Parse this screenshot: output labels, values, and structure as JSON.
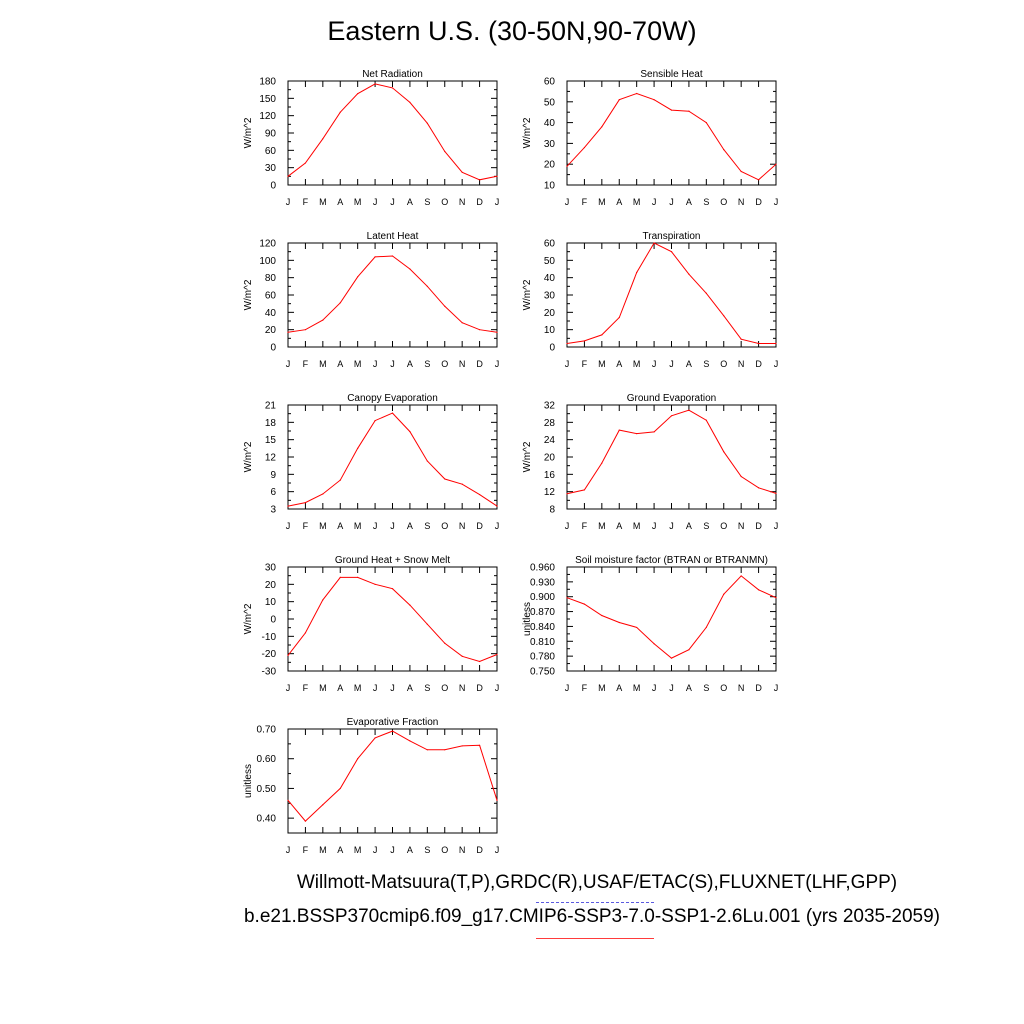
{
  "figure": {
    "title": "Eastern U.S. (30-50N,90-70W)",
    "caption_line1": "Willmott-Matsuura(T,P),GRDC(R),USAF/ETAC(S),FLUXNET(LHF,GPP)",
    "caption_line2": "b.e21.BSSP370cmip6.f09_g17.CMIP6-SSP3-7.0-SSP1-2.6Lu.001 (yrs 2035-2059)",
    "model_line_color": "#ff0000",
    "obs_line_color": "#5a5ae0"
  },
  "chart_data": [
    {
      "type": "line",
      "title": "Net Radiation",
      "ylabel": "W/m^2",
      "categories": [
        "J",
        "F",
        "M",
        "A",
        "M",
        "J",
        "J",
        "A",
        "S",
        "O",
        "N",
        "D",
        "J"
      ],
      "yticks": [
        "0",
        "30",
        "60",
        "90",
        "120",
        "150",
        "180"
      ],
      "ylim": [
        0,
        180
      ],
      "values": [
        15,
        38,
        80,
        126,
        158,
        175,
        168,
        143,
        107,
        58,
        22,
        9,
        15
      ]
    },
    {
      "type": "line",
      "title": "Sensible Heat",
      "ylabel": "W/m^2",
      "categories": [
        "J",
        "F",
        "M",
        "A",
        "M",
        "J",
        "J",
        "A",
        "S",
        "O",
        "N",
        "D",
        "J"
      ],
      "yticks": [
        "10",
        "20",
        "30",
        "40",
        "50",
        "60"
      ],
      "ylim": [
        10,
        60
      ],
      "values": [
        19,
        28,
        38,
        51,
        54,
        51,
        46,
        45.5,
        40,
        27,
        16.5,
        12.5,
        20
      ]
    },
    {
      "type": "line",
      "title": "Latent Heat",
      "ylabel": "W/m^2",
      "categories": [
        "J",
        "F",
        "M",
        "A",
        "M",
        "J",
        "J",
        "A",
        "S",
        "O",
        "N",
        "D",
        "J"
      ],
      "yticks": [
        "0",
        "20",
        "40",
        "60",
        "80",
        "100",
        "120"
      ],
      "ylim": [
        0,
        120
      ],
      "values": [
        17,
        20,
        31,
        51,
        81,
        104,
        105,
        90,
        70,
        47,
        28,
        20,
        17
      ]
    },
    {
      "type": "line",
      "title": "Transpiration",
      "ylabel": "W/m^2",
      "categories": [
        "J",
        "F",
        "M",
        "A",
        "M",
        "J",
        "J",
        "A",
        "S",
        "O",
        "N",
        "D",
        "J"
      ],
      "yticks": [
        "0",
        "10",
        "20",
        "30",
        "40",
        "50",
        "60"
      ],
      "ylim": [
        0,
        60
      ],
      "values": [
        2,
        3.5,
        7,
        17,
        43,
        60,
        55,
        42,
        31,
        18,
        4.5,
        2,
        2
      ]
    },
    {
      "type": "line",
      "title": "Canopy Evaporation",
      "ylabel": "W/m^2",
      "categories": [
        "J",
        "F",
        "M",
        "A",
        "M",
        "J",
        "J",
        "A",
        "S",
        "O",
        "N",
        "D",
        "J"
      ],
      "yticks": [
        "3",
        "6",
        "9",
        "12",
        "15",
        "18",
        "21"
      ],
      "ylim": [
        3,
        21
      ],
      "values": [
        3.5,
        4.1,
        5.6,
        8,
        13.5,
        18.3,
        19.6,
        16.4,
        11.3,
        8.2,
        7.3,
        5.5,
        3.5
      ]
    },
    {
      "type": "line",
      "title": "Ground Evaporation",
      "ylabel": "W/m^2",
      "categories": [
        "J",
        "F",
        "M",
        "A",
        "M",
        "J",
        "J",
        "A",
        "S",
        "O",
        "N",
        "D",
        "J"
      ],
      "yticks": [
        "8",
        "12",
        "16",
        "20",
        "24",
        "28",
        "32"
      ],
      "ylim": [
        8,
        32
      ],
      "values": [
        11.5,
        12.4,
        18.6,
        26.2,
        25.4,
        25.8,
        29.5,
        30.8,
        28.5,
        21.2,
        15.5,
        12.9,
        11.6
      ]
    },
    {
      "type": "line",
      "title": "Ground Heat + Snow Melt",
      "ylabel": "W/m^2",
      "categories": [
        "J",
        "F",
        "M",
        "A",
        "M",
        "J",
        "J",
        "A",
        "S",
        "O",
        "N",
        "D",
        "J"
      ],
      "yticks": [
        "-30",
        "-20",
        "-10",
        "0",
        "10",
        "20",
        "30"
      ],
      "ylim": [
        -30,
        30
      ],
      "values": [
        -21,
        -8,
        11,
        24,
        24,
        20,
        17.5,
        8,
        -3,
        -14,
        -21.5,
        -24.5,
        -20.5
      ]
    },
    {
      "type": "line",
      "title": "Soil moisture factor (BTRAN or BTRANMN)",
      "ylabel": "unitless",
      "categories": [
        "J",
        "F",
        "M",
        "A",
        "M",
        "J",
        "J",
        "A",
        "S",
        "O",
        "N",
        "D",
        "J"
      ],
      "yticks": [
        "0.750",
        "0.780",
        "0.810",
        "0.840",
        "0.870",
        "0.900",
        "0.930",
        "0.960"
      ],
      "ylim": [
        0.75,
        0.96
      ],
      "values": [
        0.898,
        0.885,
        0.862,
        0.848,
        0.838,
        0.805,
        0.776,
        0.793,
        0.838,
        0.905,
        0.942,
        0.914,
        0.898
      ]
    },
    {
      "type": "line",
      "title": "Evaporative Fraction",
      "ylabel": "unitless",
      "categories": [
        "J",
        "F",
        "M",
        "A",
        "M",
        "J",
        "J",
        "A",
        "S",
        "O",
        "N",
        "D",
        "J"
      ],
      "yticks": [
        "0.40",
        "0.50",
        "0.60",
        "0.70"
      ],
      "ylim": [
        0.35,
        0.7
      ],
      "values": [
        0.46,
        0.39,
        0.445,
        0.5,
        0.6,
        0.67,
        0.693,
        0.66,
        0.63,
        0.63,
        0.643,
        0.645,
        0.46
      ]
    }
  ]
}
